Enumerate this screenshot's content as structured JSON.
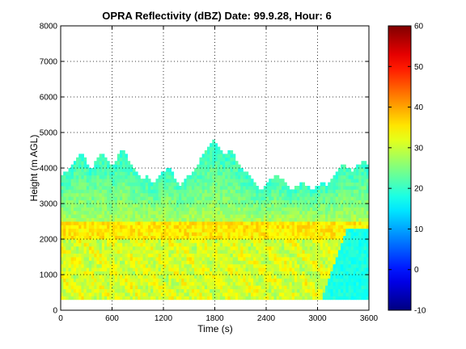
{
  "chart_data": {
    "type": "heatmap",
    "title": "OPRA Reflectivity (dBZ)  Date: 99.9.28, Hour: 6",
    "xlabel": "Time (s)",
    "ylabel": "Height (m AGL)",
    "xlim": [
      0,
      3600
    ],
    "ylim": [
      0,
      8000
    ],
    "xticks": [
      0,
      600,
      1200,
      1800,
      2400,
      3000,
      3600
    ],
    "yticks": [
      0,
      1000,
      2000,
      3000,
      4000,
      5000,
      6000,
      7000,
      8000
    ],
    "grid": true,
    "colormap": "jet",
    "colorbar": {
      "range": [
        -10,
        60
      ],
      "ticks": [
        -10,
        0,
        10,
        20,
        30,
        40,
        50,
        60
      ]
    },
    "data_min_height": 300,
    "echo_top": [
      [
        0,
        3700
      ],
      [
        60,
        3900
      ],
      [
        120,
        4000
      ],
      [
        180,
        4300
      ],
      [
        240,
        4400
      ],
      [
        300,
        4200
      ],
      [
        360,
        3900
      ],
      [
        420,
        4300
      ],
      [
        480,
        4400
      ],
      [
        540,
        4200
      ],
      [
        600,
        4000
      ],
      [
        660,
        4300
      ],
      [
        720,
        4500
      ],
      [
        780,
        4300
      ],
      [
        840,
        4000
      ],
      [
        900,
        3800
      ],
      [
        960,
        3700
      ],
      [
        1020,
        3800
      ],
      [
        1080,
        3500
      ],
      [
        1140,
        3700
      ],
      [
        1200,
        3900
      ],
      [
        1260,
        4000
      ],
      [
        1320,
        3800
      ],
      [
        1380,
        3500
      ],
      [
        1440,
        3600
      ],
      [
        1500,
        3800
      ],
      [
        1560,
        3900
      ],
      [
        1620,
        4200
      ],
      [
        1680,
        4500
      ],
      [
        1740,
        4600
      ],
      [
        1800,
        4800
      ],
      [
        1860,
        4500
      ],
      [
        1920,
        4300
      ],
      [
        1980,
        4500
      ],
      [
        2040,
        4300
      ],
      [
        2100,
        4000
      ],
      [
        2160,
        3900
      ],
      [
        2220,
        3700
      ],
      [
        2280,
        3500
      ],
      [
        2340,
        3400
      ],
      [
        2400,
        3500
      ],
      [
        2460,
        3700
      ],
      [
        2520,
        3800
      ],
      [
        2580,
        3700
      ],
      [
        2640,
        3500
      ],
      [
        2700,
        3400
      ],
      [
        2760,
        3500
      ],
      [
        2820,
        3600
      ],
      [
        2880,
        3500
      ],
      [
        2940,
        3400
      ],
      [
        3000,
        3500
      ],
      [
        3060,
        3600
      ],
      [
        3120,
        3500
      ],
      [
        3180,
        3700
      ],
      [
        3240,
        3900
      ],
      [
        3300,
        4100
      ],
      [
        3360,
        4000
      ],
      [
        3420,
        3900
      ],
      [
        3480,
        4100
      ],
      [
        3540,
        4200
      ],
      [
        3600,
        4000
      ]
    ],
    "features": [
      {
        "name": "bright band",
        "height_range": [
          2000,
          2500
        ],
        "dbz": 35
      },
      {
        "name": "cloud top",
        "height_range": [
          3000,
          4500
        ],
        "dbz": 22
      },
      {
        "name": "low reflectivity region",
        "time_range": [
          3000,
          3600
        ],
        "height_range": [
          300,
          2000
        ],
        "dbz": 18
      }
    ]
  }
}
